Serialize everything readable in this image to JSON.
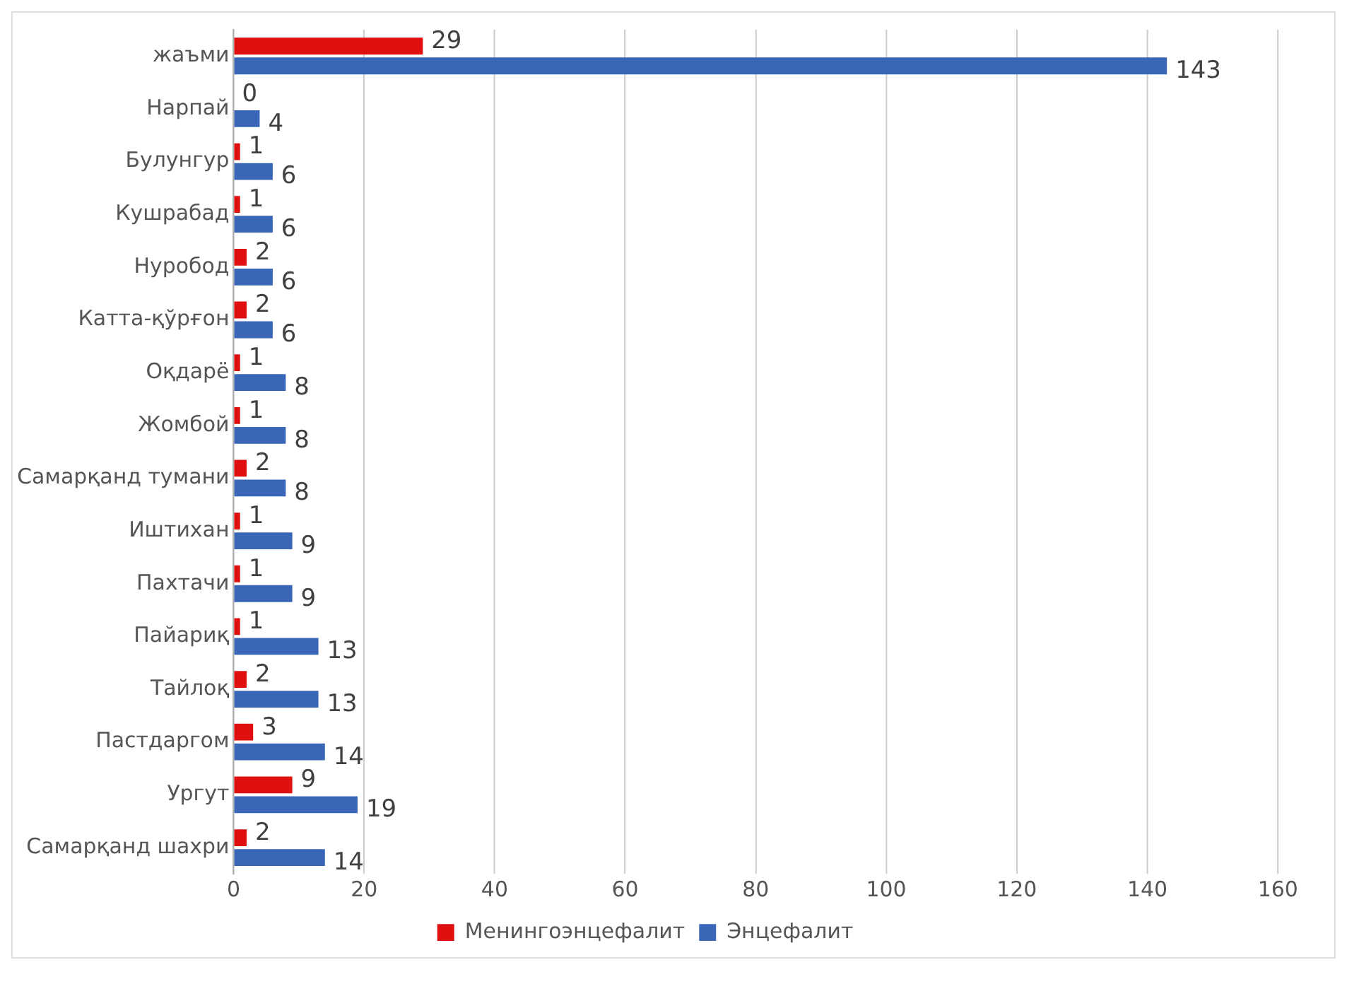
{
  "chart_data": {
    "type": "bar",
    "orientation": "horizontal",
    "categories": [
      "жаъми",
      "Нарпай",
      "Булунгур",
      "Кушрабад",
      "Нуробод",
      "Катта-қўрғон",
      "Оқдарё",
      "Жомбой",
      "Самарқанд тумани",
      "Иштихан",
      "Пахтачи",
      "Пайариқ",
      "Тайлоқ",
      "Пастдаргом",
      "Ургут",
      "Самарқанд шахри"
    ],
    "series": [
      {
        "name": "Менингоэнцефалит",
        "color": "#e01010",
        "values": [
          29,
          0,
          1,
          1,
          2,
          2,
          1,
          1,
          2,
          1,
          1,
          1,
          2,
          3,
          9,
          2
        ]
      },
      {
        "name": "Энцефалит",
        "color": "#3a66b8",
        "values": [
          143,
          4,
          6,
          6,
          6,
          6,
          8,
          8,
          8,
          9,
          9,
          13,
          13,
          14,
          19,
          14
        ]
      }
    ],
    "xlim": [
      0,
      160
    ],
    "xticks": [
      0,
      20,
      40,
      60,
      80,
      100,
      120,
      140,
      160
    ],
    "grid": "x",
    "legend": "bottom",
    "data_labels": true
  }
}
